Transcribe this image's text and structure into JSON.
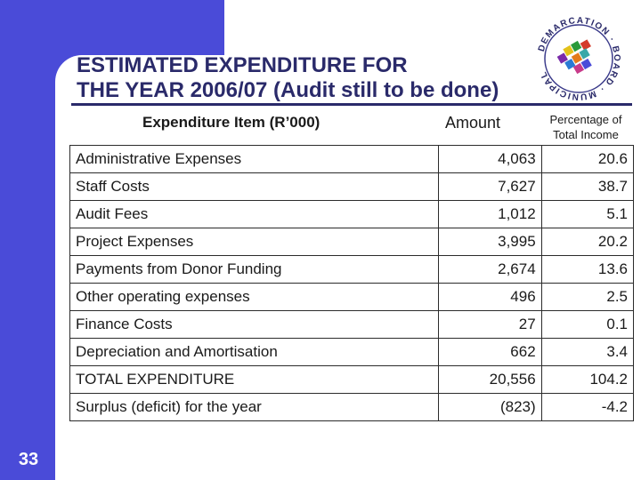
{
  "page_number": "33",
  "title_line1": "ESTIMATED EXPENDITURE FOR",
  "title_line2": "THE YEAR 2006/07 (Audit still to be done)",
  "logo": {
    "text": "DEMARCATION · BOARD · MUNICIPAL",
    "icon": "municipal-demarcation-board-logo"
  },
  "columns": {
    "item": "Expenditure Item (R’000)",
    "amount": "Amount",
    "pct_line1": "Percentage of",
    "pct_line2": "Total Income"
  },
  "rows": [
    {
      "item": "Administrative Expenses",
      "amount": "4,063",
      "pct": "20.6"
    },
    {
      "item": "Staff Costs",
      "amount": "7,627",
      "pct": "38.7"
    },
    {
      "item": "Audit Fees",
      "amount": "1,012",
      "pct": "5.1"
    },
    {
      "item": "Project Expenses",
      "amount": "3,995",
      "pct": "20.2"
    },
    {
      "item": "Payments from Donor Funding",
      "amount": "2,674",
      "pct": "13.6"
    },
    {
      "item": "Other operating expenses",
      "amount": "496",
      "pct": "2.5"
    },
    {
      "item": "Finance Costs",
      "amount": "27",
      "pct": "0.1"
    },
    {
      "item": "Depreciation and Amortisation",
      "amount": "662",
      "pct": "3.4"
    },
    {
      "item": "TOTAL EXPENDITURE",
      "amount": "20,556",
      "pct": "104.2"
    },
    {
      "item": "Surplus (deficit) for the year",
      "amount": "(823)",
      "pct": "-4.2"
    }
  ],
  "colors": {
    "band": "#4a4bd8",
    "title": "#2a2a6a"
  }
}
